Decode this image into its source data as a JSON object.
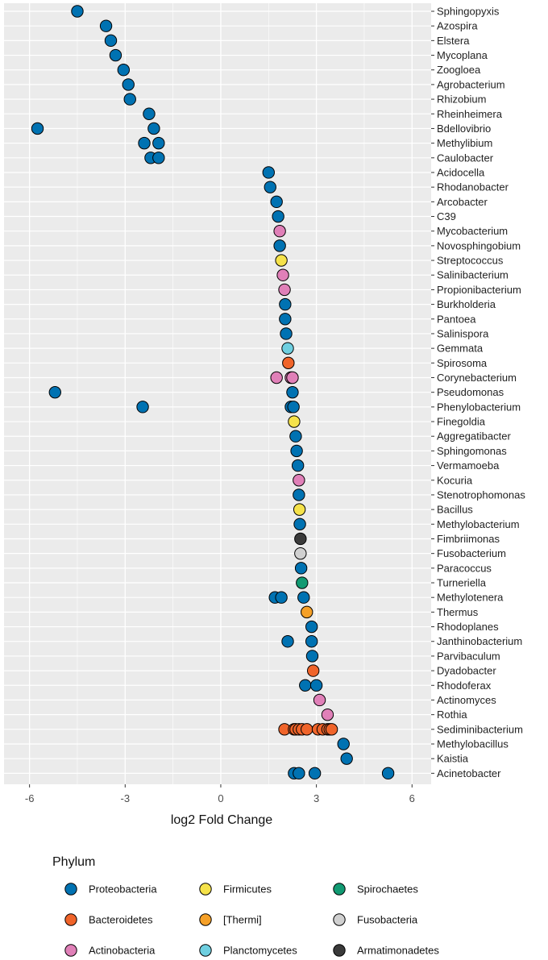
{
  "chart_data": {
    "type": "scatter",
    "title": "",
    "xlabel": "log2 Fold Change",
    "ylabel": "",
    "xlim": [
      -6.8,
      6.6
    ],
    "xticks": [
      -6,
      -3,
      0,
      3,
      6
    ],
    "xtick_labels": [
      "-6",
      "-3",
      "0",
      "3",
      "6"
    ],
    "grid": true,
    "legend_title": "Phylum",
    "legend_position": "bottom",
    "phyla": [
      {
        "name": "Proteobacteria",
        "color": "#0072B2"
      },
      {
        "name": "Bacteroidetes",
        "color": "#F0642A"
      },
      {
        "name": "Actinobacteria",
        "color": "#E080B8"
      },
      {
        "name": "Firmicutes",
        "color": "#F5E24A"
      },
      {
        "name": "[Thermi]",
        "color": "#F5A028"
      },
      {
        "name": "Planctomycetes",
        "color": "#6ECFE0"
      },
      {
        "name": "Spirochaetes",
        "color": "#119A72"
      },
      {
        "name": "Fusobacteria",
        "color": "#D0D0D0"
      },
      {
        "name": "Armatimonadetes",
        "color": "#3A3A3A"
      }
    ],
    "genera": [
      {
        "name": "Sphingopyxis",
        "phylum": "Proteobacteria",
        "values": [
          -4.5
        ]
      },
      {
        "name": "Azospira",
        "phylum": "Proteobacteria",
        "values": [
          -3.6
        ]
      },
      {
        "name": "Elstera",
        "phylum": "Proteobacteria",
        "values": [
          -3.45
        ]
      },
      {
        "name": "Mycoplana",
        "phylum": "Proteobacteria",
        "values": [
          -3.3
        ]
      },
      {
        "name": "Zoogloea",
        "phylum": "Proteobacteria",
        "values": [
          -3.05
        ]
      },
      {
        "name": "Agrobacterium",
        "phylum": "Proteobacteria",
        "values": [
          -2.9
        ]
      },
      {
        "name": "Rhizobium",
        "phylum": "Proteobacteria",
        "values": [
          -2.85
        ]
      },
      {
        "name": "Rheinheimera",
        "phylum": "Proteobacteria",
        "values": [
          -2.25
        ]
      },
      {
        "name": "Bdellovibrio",
        "phylum": "Proteobacteria",
        "values": [
          -5.75,
          -2.1
        ]
      },
      {
        "name": "Methylibium",
        "phylum": "Proteobacteria",
        "values": [
          -2.4,
          -1.95
        ]
      },
      {
        "name": "Caulobacter",
        "phylum": "Proteobacteria",
        "values": [
          -2.2,
          -1.95
        ]
      },
      {
        "name": "Acidocella",
        "phylum": "Proteobacteria",
        "values": [
          1.5
        ]
      },
      {
        "name": "Rhodanobacter",
        "phylum": "Proteobacteria",
        "values": [
          1.55
        ]
      },
      {
        "name": "Arcobacter",
        "phylum": "Proteobacteria",
        "values": [
          1.75
        ]
      },
      {
        "name": "C39",
        "phylum": "Proteobacteria",
        "values": [
          1.8
        ]
      },
      {
        "name": "Mycobacterium",
        "phylum": "Actinobacteria",
        "values": [
          1.85
        ]
      },
      {
        "name": "Novosphingobium",
        "phylum": "Proteobacteria",
        "values": [
          1.85
        ]
      },
      {
        "name": "Streptococcus",
        "phylum": "Firmicutes",
        "values": [
          1.9
        ]
      },
      {
        "name": "Salinibacterium",
        "phylum": "Actinobacteria",
        "values": [
          1.95
        ]
      },
      {
        "name": "Propionibacterium",
        "phylum": "Actinobacteria",
        "values": [
          2.0
        ]
      },
      {
        "name": "Burkholderia",
        "phylum": "Proteobacteria",
        "values": [
          2.02
        ]
      },
      {
        "name": "Pantoea",
        "phylum": "Proteobacteria",
        "values": [
          2.02
        ]
      },
      {
        "name": "Salinispora",
        "phylum": "Proteobacteria",
        "values": [
          2.05
        ]
      },
      {
        "name": "Gemmata",
        "phylum": "Planctomycetes",
        "values": [
          2.1
        ]
      },
      {
        "name": "Spirosoma",
        "phylum": "Bacteroidetes",
        "values": [
          2.12
        ]
      },
      {
        "name": "Corynebacterium",
        "phylum": "Actinobacteria",
        "values": [
          1.75,
          2.2,
          2.25
        ]
      },
      {
        "name": "Pseudomonas",
        "phylum": "Proteobacteria",
        "values": [
          -5.2,
          2.25
        ]
      },
      {
        "name": "Phenylobacterium",
        "phylum": "Proteobacteria",
        "values": [
          -2.45,
          2.2,
          2.28
        ]
      },
      {
        "name": "Finegoldia",
        "phylum": "Firmicutes",
        "values": [
          2.3
        ]
      },
      {
        "name": "Aggregatibacter",
        "phylum": "Proteobacteria",
        "values": [
          2.35
        ]
      },
      {
        "name": "Sphingomonas",
        "phylum": "Proteobacteria",
        "values": [
          2.38
        ]
      },
      {
        "name": "Vermamoeba",
        "phylum": "Proteobacteria",
        "values": [
          2.42
        ]
      },
      {
        "name": "Kocuria",
        "phylum": "Actinobacteria",
        "values": [
          2.45
        ]
      },
      {
        "name": "Stenotrophomonas",
        "phylum": "Proteobacteria",
        "values": [
          2.45
        ]
      },
      {
        "name": "Bacillus",
        "phylum": "Firmicutes",
        "values": [
          2.47
        ]
      },
      {
        "name": "Methylobacterium",
        "phylum": "Proteobacteria",
        "values": [
          2.48
        ]
      },
      {
        "name": "Fimbriimonas",
        "phylum": "Armatimonadetes",
        "values": [
          2.5
        ]
      },
      {
        "name": "Fusobacterium",
        "phylum": "Fusobacteria",
        "values": [
          2.5
        ]
      },
      {
        "name": "Paracoccus",
        "phylum": "Proteobacteria",
        "values": [
          2.52
        ]
      },
      {
        "name": "Turneriella",
        "phylum": "Spirochaetes",
        "values": [
          2.55
        ]
      },
      {
        "name": "Methylotenera",
        "phylum": "Proteobacteria",
        "values": [
          1.7,
          1.9,
          2.6
        ]
      },
      {
        "name": "Thermus",
        "phylum": "[Thermi]",
        "values": [
          2.7
        ]
      },
      {
        "name": "Rhodoplanes",
        "phylum": "Proteobacteria",
        "values": [
          2.85
        ]
      },
      {
        "name": "Janthinobacterium",
        "phylum": "Proteobacteria",
        "values": [
          2.1,
          2.85
        ]
      },
      {
        "name": "Parvibaculum",
        "phylum": "Proteobacteria",
        "values": [
          2.87
        ]
      },
      {
        "name": "Dyadobacter",
        "phylum": "Bacteroidetes",
        "values": [
          2.9
        ]
      },
      {
        "name": "Rhodoferax",
        "phylum": "Proteobacteria",
        "values": [
          2.65,
          3.0
        ]
      },
      {
        "name": "Actinomyces",
        "phylum": "Actinobacteria",
        "values": [
          3.1
        ]
      },
      {
        "name": "Rothia",
        "phylum": "Actinobacteria",
        "values": [
          3.35
        ]
      },
      {
        "name": "Sediminibacterium",
        "phylum": "Bacteroidetes",
        "values": [
          2.0,
          2.3,
          2.35,
          2.45,
          2.55,
          2.7,
          3.05,
          3.2,
          3.35,
          3.42,
          3.48
        ]
      },
      {
        "name": "Methylobacillus",
        "phylum": "Proteobacteria",
        "values": [
          3.85
        ]
      },
      {
        "name": "Kaistia",
        "phylum": "Proteobacteria",
        "values": [
          3.95
        ]
      },
      {
        "name": "Acinetobacter",
        "phylum": "Proteobacteria",
        "values": [
          2.3,
          2.45,
          2.95,
          5.25
        ]
      }
    ]
  }
}
